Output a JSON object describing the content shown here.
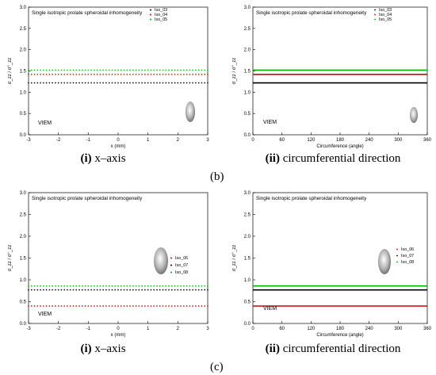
{
  "chart_data": [
    {
      "id": "b-i",
      "type": "scatter",
      "title": "Single isotropic prolate spheroidal inhomogeneity",
      "xlabel": "x (mm)",
      "ylabel": "σ_zz / σ°_zz",
      "xlim": [
        -3,
        3
      ],
      "ylim": [
        0,
        3
      ],
      "xticks": [
        -3,
        -2,
        -1,
        0,
        1,
        2,
        3
      ],
      "yticks": [
        0.0,
        0.5,
        1.0,
        1.5,
        2.0,
        2.5,
        3.0
      ],
      "series": [
        {
          "name": "Iso_03",
          "color": "#000000",
          "value": 1.22
        },
        {
          "name": "Iso_04",
          "color": "#d40000",
          "value": 1.42
        },
        {
          "name": "Iso_05",
          "color": "#00b000",
          "value": 1.52
        }
      ],
      "legend": "top-right",
      "annotation": "VIEM",
      "caption_num": "(i)",
      "caption_text": " x–axis"
    },
    {
      "id": "b-ii",
      "type": "line",
      "title": "Single isotropic prolate spheroidal inhomogeneity",
      "xlabel": "Circumference (angle)",
      "ylabel": "σ_zz / σ°_zz",
      "xlim": [
        0,
        360
      ],
      "ylim": [
        0,
        3
      ],
      "xticks": [
        0,
        60,
        120,
        180,
        240,
        300,
        360
      ],
      "yticks": [
        0.0,
        0.5,
        1.0,
        1.5,
        2.0,
        2.5,
        3.0
      ],
      "series": [
        {
          "name": "Iso_03",
          "color": "#000000",
          "value": 1.22
        },
        {
          "name": "Iso_04",
          "color": "#d40000",
          "value": 1.42
        },
        {
          "name": "Iso_05",
          "color": "#00b000",
          "value": 1.52
        }
      ],
      "legend": "top-right",
      "annotation": "VIEM",
      "caption_num": "(ii)",
      "caption_text": " circumferential direction"
    },
    {
      "id": "c-i",
      "type": "scatter",
      "title": "Single isotropic prolate spheroidal inhomogeneity",
      "xlabel": "x (mm)",
      "ylabel": "σ_zz / σ°_zz",
      "xlim": [
        -3,
        3
      ],
      "ylim": [
        0,
        3
      ],
      "xticks": [
        -3,
        -2,
        -1,
        0,
        1,
        2,
        3
      ],
      "yticks": [
        0.0,
        0.5,
        1.0,
        1.5,
        2.0,
        2.5,
        3.0
      ],
      "series": [
        {
          "name": "Iso_06",
          "color": "#d40000",
          "value": 0.4
        },
        {
          "name": "Iso_07",
          "color": "#000000",
          "value": 0.77
        },
        {
          "name": "Iso_08",
          "color": "#00b000",
          "value": 0.86
        }
      ],
      "legend": "right",
      "annotation": "VIEM",
      "caption_num": "(i)",
      "caption_text": " x–axis"
    },
    {
      "id": "c-ii",
      "type": "line",
      "title": "Single isotropic prolate spheroidal inhomogeneity",
      "xlabel": "Circumference (angle)",
      "ylabel": "σ_zz / σ°_zz",
      "xlim": [
        0,
        360
      ],
      "ylim": [
        0,
        3
      ],
      "xticks": [
        0,
        60,
        120,
        180,
        240,
        300,
        360
      ],
      "yticks": [
        0.0,
        0.5,
        1.0,
        1.5,
        2.0,
        2.5,
        3.0
      ],
      "series": [
        {
          "name": "Iso_06",
          "color": "#d40000",
          "value": 0.4
        },
        {
          "name": "Iso_07",
          "color": "#000000",
          "value": 0.77
        },
        {
          "name": "Iso_08",
          "color": "#00b000",
          "value": 0.86
        }
      ],
      "legend": "right",
      "annotation": "VIEM",
      "caption_num": "(ii)",
      "caption_text": " circumferential direction"
    }
  ],
  "group_labels": [
    "(b)",
    "(c)"
  ]
}
